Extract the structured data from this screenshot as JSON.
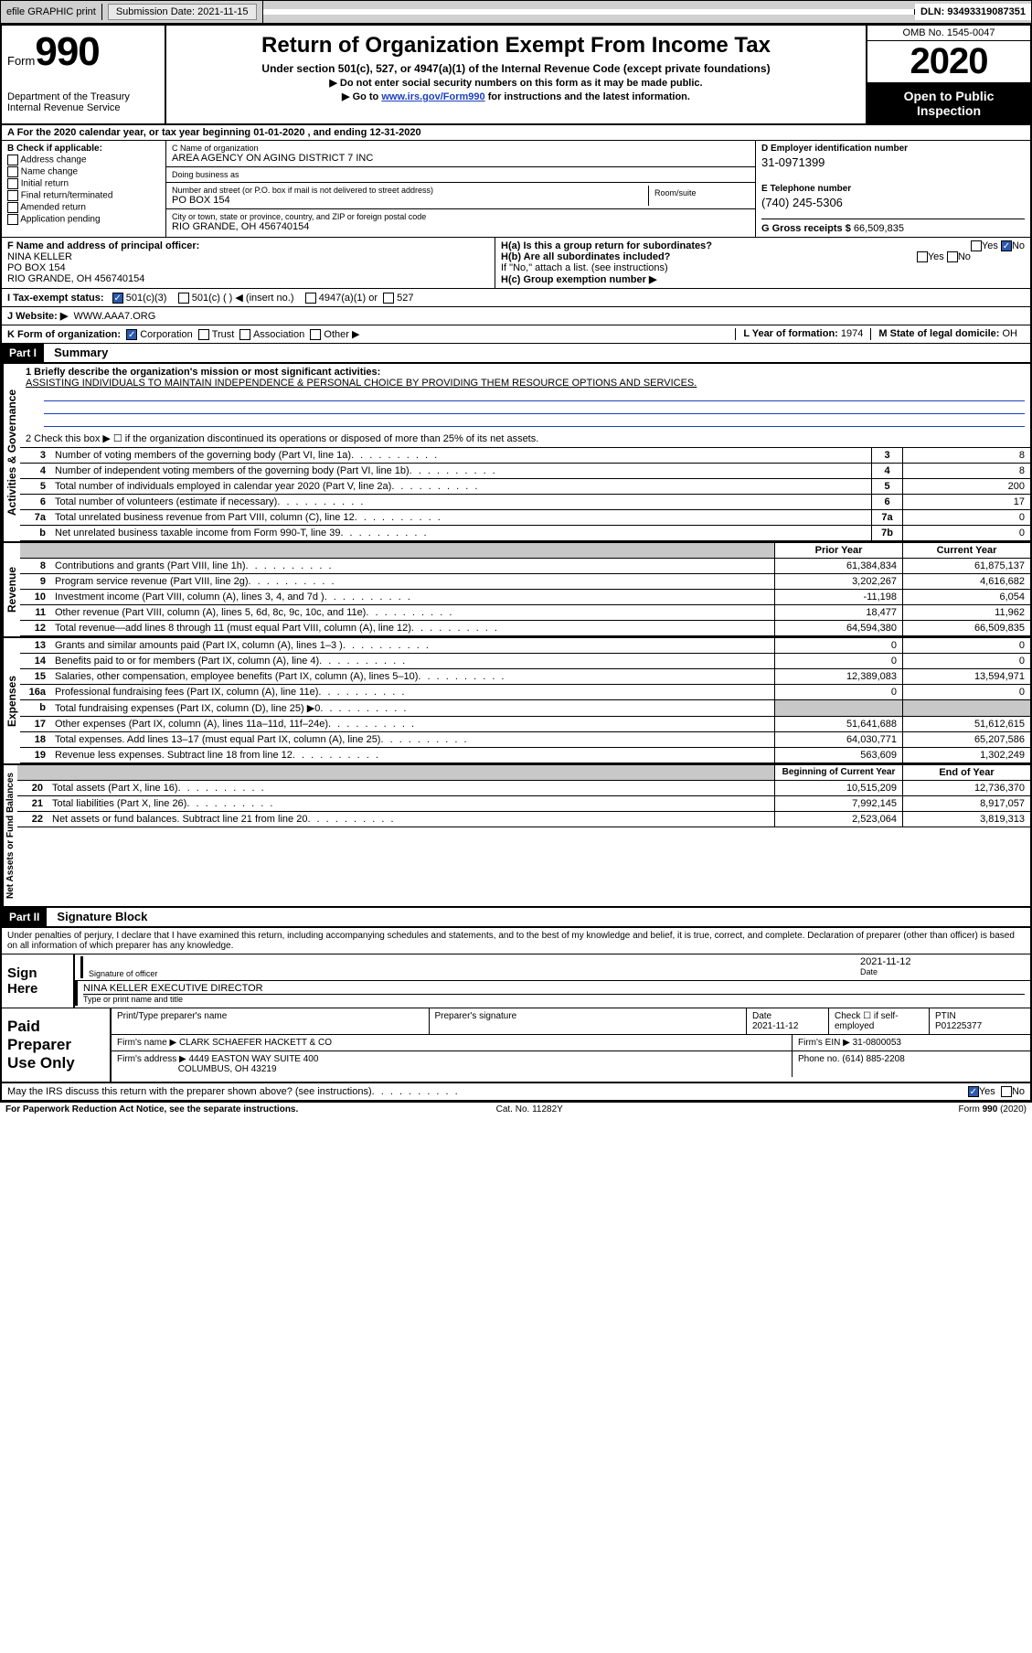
{
  "topbar": {
    "efile": "efile GRAPHIC print",
    "submission_label": "Submission Date:",
    "submission_date": "2021-11-15",
    "dln_label": "DLN:",
    "dln": "93493319087351"
  },
  "header": {
    "form_word": "Form",
    "form_num": "990",
    "dept1": "Department of the Treasury",
    "dept2": "Internal Revenue Service",
    "title": "Return of Organization Exempt From Income Tax",
    "sub": "Under section 501(c), 527, or 4947(a)(1) of the Internal Revenue Code (except private foundations)",
    "note1": "▶ Do not enter social security numbers on this form as it may be made public.",
    "note2_pre": "▶ Go to ",
    "note2_link": "www.irs.gov/Form990",
    "note2_post": " for instructions and the latest information.",
    "omb": "OMB No. 1545-0047",
    "year": "2020",
    "open1": "Open to Public",
    "open2": "Inspection"
  },
  "rowA": "A For the 2020 calendar year, or tax year beginning 01-01-2020   , and ending 12-31-2020",
  "boxB": {
    "title": "B Check if applicable:",
    "opts": [
      "Address change",
      "Name change",
      "Initial return",
      "Final return/terminated",
      "Amended return",
      "Application pending"
    ]
  },
  "boxC": {
    "name_lbl": "C Name of organization",
    "name": "AREA AGENCY ON AGING DISTRICT 7 INC",
    "dba_lbl": "Doing business as",
    "dba": "",
    "street_lbl": "Number and street (or P.O. box if mail is not delivered to street address)",
    "room_lbl": "Room/suite",
    "street": "PO BOX 154",
    "city_lbl": "City or town, state or province, country, and ZIP or foreign postal code",
    "city": "RIO GRANDE, OH  456740154"
  },
  "boxD": {
    "lbl": "D Employer identification number",
    "val": "31-0971399"
  },
  "boxE": {
    "lbl": "E Telephone number",
    "val": "(740) 245-5306"
  },
  "boxG": {
    "lbl": "G Gross receipts $",
    "val": "66,509,835"
  },
  "boxF": {
    "lbl": "F Name and address of principal officer:",
    "l1": "NINA KELLER",
    "l2": "PO BOX 154",
    "l3": "RIO GRANDE, OH  456740154"
  },
  "boxH": {
    "a": "H(a)  Is this a group return for subordinates?",
    "b": "H(b)  Are all subordinates included?",
    "bnote": "If \"No,\" attach a list. (see instructions)",
    "c": "H(c)  Group exemption number ▶"
  },
  "boxI": {
    "lbl": "I Tax-exempt status:",
    "o1": "501(c)(3)",
    "o2": "501(c) (  ) ◀ (insert no.)",
    "o3": "4947(a)(1) or",
    "o4": "527"
  },
  "boxJ": {
    "lbl": "J  Website: ▶",
    "val": "WWW.AAA7.ORG"
  },
  "boxK": {
    "lbl": "K Form of organization:",
    "o1": "Corporation",
    "o2": "Trust",
    "o3": "Association",
    "o4": "Other ▶"
  },
  "boxL": {
    "lbl": "L Year of formation:",
    "val": "1974"
  },
  "boxM": {
    "lbl": "M State of legal domicile:",
    "val": "OH"
  },
  "partI": {
    "bar": "Part I",
    "title": "Summary"
  },
  "summary": {
    "l1_lbl": "1  Briefly describe the organization's mission or most significant activities:",
    "l1_val": "ASSISTING INDIVIDUALS TO MAINTAIN INDEPENDENCE & PERSONAL CHOICE BY PROVIDING THEM RESOURCE OPTIONS AND SERVICES.",
    "l2": "2   Check this box ▶ ☐  if the organization discontinued its operations or disposed of more than 25% of its net assets.",
    "rows_gov": [
      {
        "n": "3",
        "d": "Number of voting members of the governing body (Part VI, line 1a)",
        "box": "3",
        "v": "8"
      },
      {
        "n": "4",
        "d": "Number of independent voting members of the governing body (Part VI, line 1b)",
        "box": "4",
        "v": "8"
      },
      {
        "n": "5",
        "d": "Total number of individuals employed in calendar year 2020 (Part V, line 2a)",
        "box": "5",
        "v": "200"
      },
      {
        "n": "6",
        "d": "Total number of volunteers (estimate if necessary)",
        "box": "6",
        "v": "17"
      },
      {
        "n": "7a",
        "d": "Total unrelated business revenue from Part VIII, column (C), line 12",
        "box": "7a",
        "v": "0"
      },
      {
        "n": "b",
        "d": "Net unrelated business taxable income from Form 990-T, line 39",
        "box": "7b",
        "v": "0"
      }
    ],
    "col_py": "Prior Year",
    "col_cy": "Current Year",
    "rows_rev": [
      {
        "n": "8",
        "d": "Contributions and grants (Part VIII, line 1h)",
        "py": "61,384,834",
        "cy": "61,875,137"
      },
      {
        "n": "9",
        "d": "Program service revenue (Part VIII, line 2g)",
        "py": "3,202,267",
        "cy": "4,616,682"
      },
      {
        "n": "10",
        "d": "Investment income (Part VIII, column (A), lines 3, 4, and 7d )",
        "py": "-11,198",
        "cy": "6,054"
      },
      {
        "n": "11",
        "d": "Other revenue (Part VIII, column (A), lines 5, 6d, 8c, 9c, 10c, and 11e)",
        "py": "18,477",
        "cy": "11,962"
      },
      {
        "n": "12",
        "d": "Total revenue—add lines 8 through 11 (must equal Part VIII, column (A), line 12)",
        "py": "64,594,380",
        "cy": "66,509,835"
      }
    ],
    "rows_exp": [
      {
        "n": "13",
        "d": "Grants and similar amounts paid (Part IX, column (A), lines 1–3 )",
        "py": "0",
        "cy": "0"
      },
      {
        "n": "14",
        "d": "Benefits paid to or for members (Part IX, column (A), line 4)",
        "py": "0",
        "cy": "0"
      },
      {
        "n": "15",
        "d": "Salaries, other compensation, employee benefits (Part IX, column (A), lines 5–10)",
        "py": "12,389,083",
        "cy": "13,594,971"
      },
      {
        "n": "16a",
        "d": "Professional fundraising fees (Part IX, column (A), line 11e)",
        "py": "0",
        "cy": "0"
      },
      {
        "n": "b",
        "d": "Total fundraising expenses (Part IX, column (D), line 25) ▶0",
        "py": "",
        "cy": "",
        "gray": true
      },
      {
        "n": "17",
        "d": "Other expenses (Part IX, column (A), lines 11a–11d, 11f–24e)",
        "py": "51,641,688",
        "cy": "51,612,615"
      },
      {
        "n": "18",
        "d": "Total expenses. Add lines 13–17 (must equal Part IX, column (A), line 25)",
        "py": "64,030,771",
        "cy": "65,207,586"
      },
      {
        "n": "19",
        "d": "Revenue less expenses. Subtract line 18 from line 12",
        "py": "563,609",
        "cy": "1,302,249"
      }
    ],
    "col_by": "Beginning of Current Year",
    "col_ey": "End of Year",
    "rows_net": [
      {
        "n": "20",
        "d": "Total assets (Part X, line 16)",
        "py": "10,515,209",
        "cy": "12,736,370"
      },
      {
        "n": "21",
        "d": "Total liabilities (Part X, line 26)",
        "py": "7,992,145",
        "cy": "8,917,057"
      },
      {
        "n": "22",
        "d": "Net assets or fund balances. Subtract line 21 from line 20",
        "py": "2,523,064",
        "cy": "3,819,313"
      }
    ],
    "side_gov": "Activities & Governance",
    "side_rev": "Revenue",
    "side_exp": "Expenses",
    "side_net": "Net Assets or Fund Balances"
  },
  "partII": {
    "bar": "Part II",
    "title": "Signature Block"
  },
  "perjury": "Under penalties of perjury, I declare that I have examined this return, including accompanying schedules and statements, and to the best of my knowledge and belief, it is true, correct, and complete. Declaration of preparer (other than officer) is based on all information of which preparer has any knowledge.",
  "sign": {
    "left": "Sign Here",
    "sig_lbl": "Signature of officer",
    "date": "2021-11-12",
    "date_lbl": "Date",
    "name": "NINA KELLER  EXECUTIVE DIRECTOR",
    "name_lbl": "Type or print name and title"
  },
  "prep": {
    "left1": "Paid",
    "left2": "Preparer",
    "left3": "Use Only",
    "h1": "Print/Type preparer's name",
    "h2": "Preparer's signature",
    "h3": "Date",
    "h3v": "2021-11-12",
    "h4": "Check ☐ if self-employed",
    "h5": "PTIN",
    "h5v": "P01225377",
    "firm_lbl": "Firm's name     ▶",
    "firm": "CLARK SCHAEFER HACKETT & CO",
    "ein_lbl": "Firm's EIN ▶",
    "ein": "31-0800053",
    "addr_lbl": "Firm's address ▶",
    "addr1": "4449 EASTON WAY SUITE 400",
    "addr2": "COLUMBUS, OH  43219",
    "phone_lbl": "Phone no.",
    "phone": "(614) 885-2208"
  },
  "discuss": "May the IRS discuss this return with the preparer shown above? (see instructions)",
  "yes": "Yes",
  "no": "No",
  "footer": {
    "left": "For Paperwork Reduction Act Notice, see the separate instructions.",
    "mid": "Cat. No. 11282Y",
    "right": "Form 990 (2020)"
  }
}
